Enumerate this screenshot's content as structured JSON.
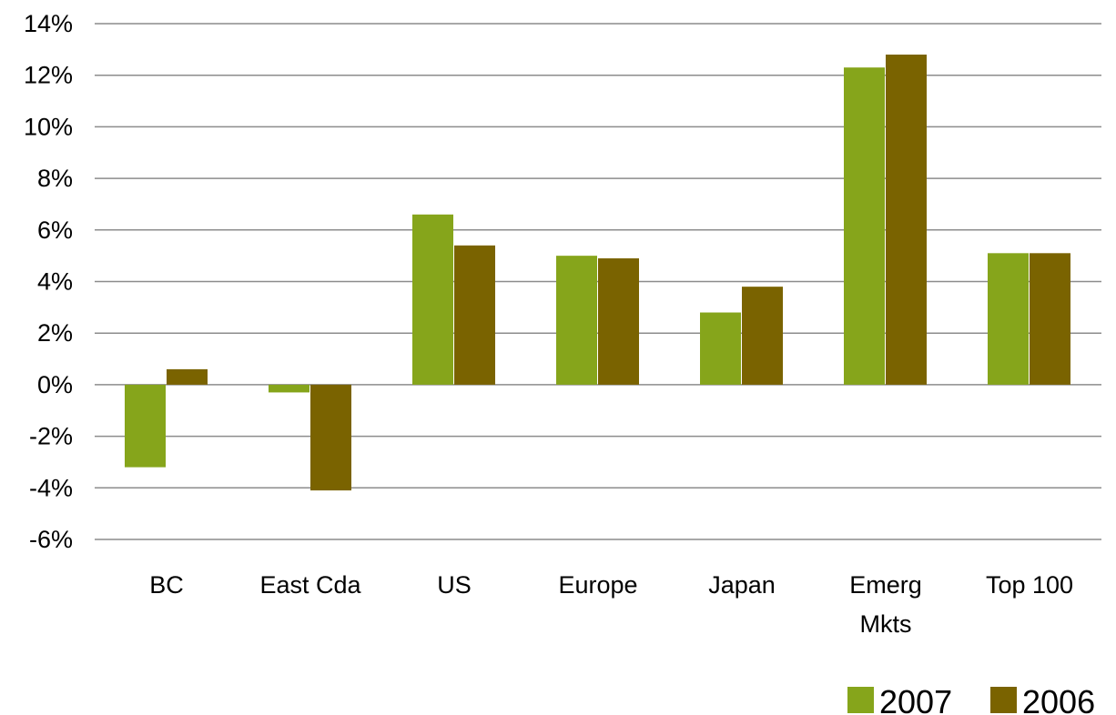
{
  "chart_data": {
    "type": "bar",
    "categories": [
      [
        "BC"
      ],
      [
        "East Cda"
      ],
      [
        "US"
      ],
      [
        "Europe"
      ],
      [
        "Japan"
      ],
      [
        "Emerg",
        "Mkts"
      ],
      [
        "Top 100"
      ]
    ],
    "series": [
      {
        "name": "2007",
        "color": "#86a51b",
        "values": [
          -3.2,
          -0.3,
          6.6,
          5.0,
          2.8,
          12.3,
          5.1
        ]
      },
      {
        "name": "2006",
        "color": "#7a6300",
        "values": [
          0.6,
          -4.1,
          5.4,
          4.9,
          3.8,
          12.8,
          5.1
        ]
      }
    ],
    "yticks": [
      "14%",
      "12%",
      "10%",
      "8%",
      "6%",
      "4%",
      "2%",
      "0%",
      "-2%",
      "-4%",
      "-6%"
    ],
    "ylim": [
      -6,
      14
    ],
    "grid": true,
    "legend_position": "bottom-right",
    "title": "",
    "xlabel": "",
    "ylabel": ""
  }
}
